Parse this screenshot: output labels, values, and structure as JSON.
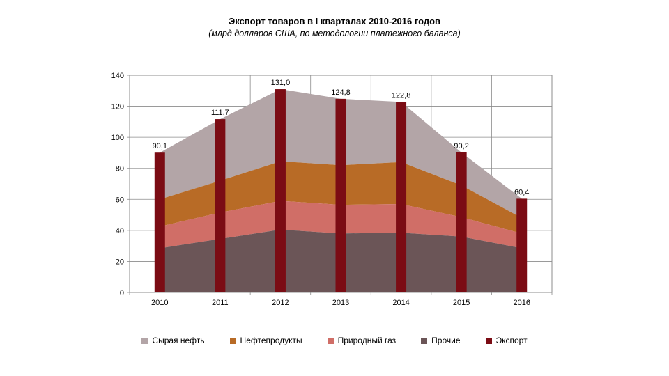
{
  "chart_data": {
    "type": "area",
    "title": "Экспорт товаров в I кварталах 2010-2016 годов",
    "subtitle": "(млрд долларов США, по методологии платежного баланса)",
    "categories": [
      "2010",
      "2011",
      "2012",
      "2013",
      "2014",
      "2015",
      "2016"
    ],
    "ylim": [
      0,
      140
    ],
    "yticks": [
      0,
      20,
      40,
      60,
      80,
      100,
      120,
      140
    ],
    "grid": true,
    "stacked_areas": [
      {
        "name": "Прочие",
        "color": "#6b5557",
        "values": [
          28.5,
          34.5,
          40.5,
          38.0,
          38.5,
          36.0,
          28.5
        ]
      },
      {
        "name": "Природный газ",
        "color": "#d06e67",
        "values": [
          14.0,
          17.0,
          18.5,
          18.5,
          18.5,
          12.5,
          9.5
        ]
      },
      {
        "name": "Нефтепродукты",
        "color": "#b86b26",
        "values": [
          17.5,
          20.5,
          25.5,
          25.5,
          27.0,
          20.5,
          10.0
        ]
      },
      {
        "name": "Сырая нефть",
        "color": "#b3a5a7",
        "values": [
          30.1,
          39.7,
          46.5,
          42.8,
          38.8,
          21.2,
          12.4
        ]
      }
    ],
    "bars": {
      "name": "Экспорт",
      "color": "#7b0c14",
      "values": [
        90.1,
        111.7,
        131.0,
        124.8,
        122.8,
        90.2,
        60.4
      ],
      "labels": [
        "90,1",
        "111,7",
        "131,0",
        "124,8",
        "122,8",
        "90,2",
        "60,4"
      ]
    },
    "legend": [
      {
        "name": "Сырая нефть",
        "color": "#b3a5a7"
      },
      {
        "name": "Нефтепродукты",
        "color": "#b86b26"
      },
      {
        "name": "Природный газ",
        "color": "#d06e67"
      },
      {
        "name": "Прочие",
        "color": "#6b5557"
      },
      {
        "name": "Экспорт",
        "color": "#7b0c14"
      }
    ],
    "legend_position": "bottom"
  }
}
